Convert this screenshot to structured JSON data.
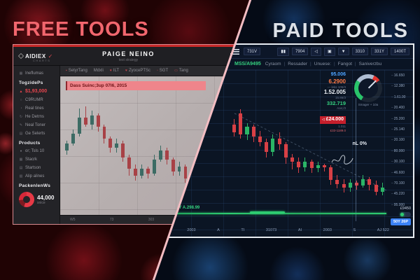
{
  "icons": {
    "logo_check": "✓",
    "heart": "♥",
    "square": "▪",
    "tab_sgt": "▫",
    "tab_tang": "▭",
    "bars": "▮▮",
    "speaker": "◁",
    "photo": "▣",
    "filter": "▼",
    "calendar": "▦",
    "alert": "▲",
    "ring": "○",
    "clock": "◔",
    "refresh": "↻",
    "pen": "✎",
    "list": "▤",
    "user": "●",
    "grid": "▦",
    "doc": "▤",
    "layers": "▧"
  },
  "free": {
    "title": "FREE TOOLS",
    "logo": {
      "name": "AIDIEX",
      "sub": "CHARTS"
    },
    "header": {
      "title": "PAIGE NEINO",
      "subtitle": "test strategy"
    },
    "sidebar": {
      "top_label": "Ineflumas",
      "sec1": {
        "header": "TogzidePs",
        "items": [
          {
            "label": "$1,93,000"
          },
          {
            "label": "C9RUMR"
          },
          {
            "label": "Real tines"
          },
          {
            "label": "He Detrns"
          },
          {
            "label": "Neal Toner"
          },
          {
            "label": "Ge Selerts"
          }
        ]
      },
      "sec2": {
        "header": "Products",
        "items": [
          {
            "label": "or; Tsls 10"
          },
          {
            "label": "Stacrk"
          },
          {
            "label": "Startson"
          },
          {
            "label": "Alip alines"
          }
        ]
      },
      "stats": {
        "header": "PackenlenWs",
        "value": "44,000",
        "caption": "snice"
      }
    },
    "tabs": [
      {
        "label": "SetyrTang"
      },
      {
        "label": "Mdxli"
      },
      {
        "label": "ILT"
      },
      {
        "label": "ZyocePTSc"
      },
      {
        "label": "SGT"
      },
      {
        "label": "Tang"
      }
    ],
    "banner": "Dass Suinc;3up 07I6, 2015",
    "x_labels": [
      "W5",
      "73",
      "303",
      "T1",
      "3N3"
    ]
  },
  "paid": {
    "title": "PAID TOOLS",
    "toolbar": {
      "btn_left": "731V",
      "btn1": "7904",
      "btn2": "3310",
      "btn3": "331Y",
      "btn4": "1400T"
    },
    "symbol": "MSS/A9495",
    "menu": [
      "Cyraom",
      "Ressader",
      "Unuese:",
      "Fangot",
      "Saniverzbu"
    ],
    "quote": {
      "p1": "95.006",
      "p2": "6.2900",
      "s1": "— leks 105/3",
      "p3": "1.52.005",
      "s2": "15.86/3",
      "p4": "332.719",
      "s3": "Aas;/3",
      "alert": "£24.000",
      "alert_sub": "1.011",
      "tag": "£33-1189.0"
    },
    "gauge_label": "Smager + 10a",
    "annotation": "nL 0%",
    "green_note": "aut Y A.298.99",
    "y_labels": [
      "16.650",
      "12.380",
      "1.61.00",
      "20.400",
      "25.200",
      "25.140",
      "20.100",
      "80.000",
      "30.100",
      "46.600",
      "70.100",
      "45.220",
      "95.000"
    ],
    "x_labels": [
      "A",
      "2003",
      "A",
      "TI",
      "31073",
      "AI",
      "2003",
      "S",
      "AJ 522"
    ],
    "corner": {
      "label": "£9450",
      "button": "50Y 26P"
    }
  },
  "chart_data": [
    {
      "type": "candlestick",
      "panel": "free-tools-chart",
      "title": "Dass Suinc;3up 07I6, 2015",
      "x_labels": [
        "W5",
        "73",
        "303",
        "T1",
        "3N3"
      ],
      "value_scale": [
        0,
        100
      ],
      "colors": {
        "up": "#3c6b64",
        "down": "#a84146"
      },
      "candles_ohlc": [
        [
          52,
          60,
          48,
          58
        ],
        [
          58,
          70,
          56,
          66
        ],
        [
          66,
          88,
          64,
          80
        ],
        [
          80,
          90,
          72,
          74
        ],
        [
          74,
          86,
          70,
          82
        ],
        [
          82,
          84,
          68,
          72
        ],
        [
          72,
          74,
          58,
          62
        ],
        [
          62,
          64,
          50,
          54
        ],
        [
          54,
          62,
          50,
          58
        ],
        [
          58,
          60,
          42,
          46
        ],
        [
          46,
          48,
          30,
          36
        ],
        [
          36,
          40,
          26,
          30
        ],
        [
          30,
          40,
          28,
          36
        ],
        [
          36,
          38,
          28,
          32
        ],
        [
          32,
          48,
          30,
          44
        ],
        [
          44,
          56,
          42,
          52
        ],
        [
          52,
          54,
          40,
          44
        ],
        [
          44,
          46,
          30,
          34
        ],
        [
          34,
          42,
          30,
          38
        ],
        [
          38,
          40,
          24,
          28
        ],
        [
          28,
          30,
          16,
          22
        ],
        [
          22,
          32,
          20,
          28
        ],
        [
          28,
          30,
          14,
          20
        ],
        [
          20,
          30,
          18,
          26
        ],
        [
          26,
          36,
          24,
          32
        ],
        [
          32,
          34,
          20,
          24
        ],
        [
          24,
          26,
          8,
          14
        ],
        [
          14,
          18,
          4,
          10
        ]
      ]
    },
    {
      "type": "candlestick",
      "panel": "paid-tools-chart",
      "x_labels": [
        "A",
        "2003",
        "A",
        "TI",
        "31073",
        "AI",
        "2003",
        "S",
        "AJ 522"
      ],
      "y_labels": [
        "16.650",
        "12.380",
        "1.61.00",
        "20.400",
        "25.200",
        "25.140",
        "20.100",
        "80.000",
        "30.100",
        "46.600",
        "70.100",
        "45.220",
        "95.000"
      ],
      "value_scale": [
        0,
        100
      ],
      "colors": {
        "up": "#2bb566",
        "down": "#d84045"
      },
      "volume_line_color": "#2ecc71",
      "candles_ohlc": [
        [
          78,
          84,
          66,
          70
        ],
        [
          90,
          94,
          64,
          68
        ],
        [
          68,
          80,
          62,
          76
        ],
        [
          76,
          78,
          60,
          66
        ],
        [
          66,
          72,
          56,
          60
        ],
        [
          60,
          64,
          44,
          50
        ],
        [
          50,
          68,
          46,
          64
        ],
        [
          64,
          70,
          52,
          58
        ],
        [
          58,
          60,
          38,
          44
        ],
        [
          44,
          48,
          32,
          40
        ],
        [
          40,
          44,
          28,
          34
        ],
        [
          34,
          44,
          30,
          40
        ],
        [
          40,
          42,
          28,
          33
        ],
        [
          33,
          40,
          29,
          36
        ],
        [
          36,
          38,
          30,
          34
        ],
        [
          34,
          36,
          16,
          21
        ],
        [
          21,
          26,
          12,
          17
        ],
        [
          17,
          22,
          8,
          13
        ],
        [
          13,
          22,
          9,
          18
        ],
        [
          18,
          20,
          11,
          15
        ],
        [
          15,
          26,
          13,
          22
        ],
        [
          22,
          24,
          10,
          16
        ],
        [
          16,
          20,
          5,
          9
        ],
        [
          9,
          18,
          5,
          13
        ]
      ]
    }
  ]
}
